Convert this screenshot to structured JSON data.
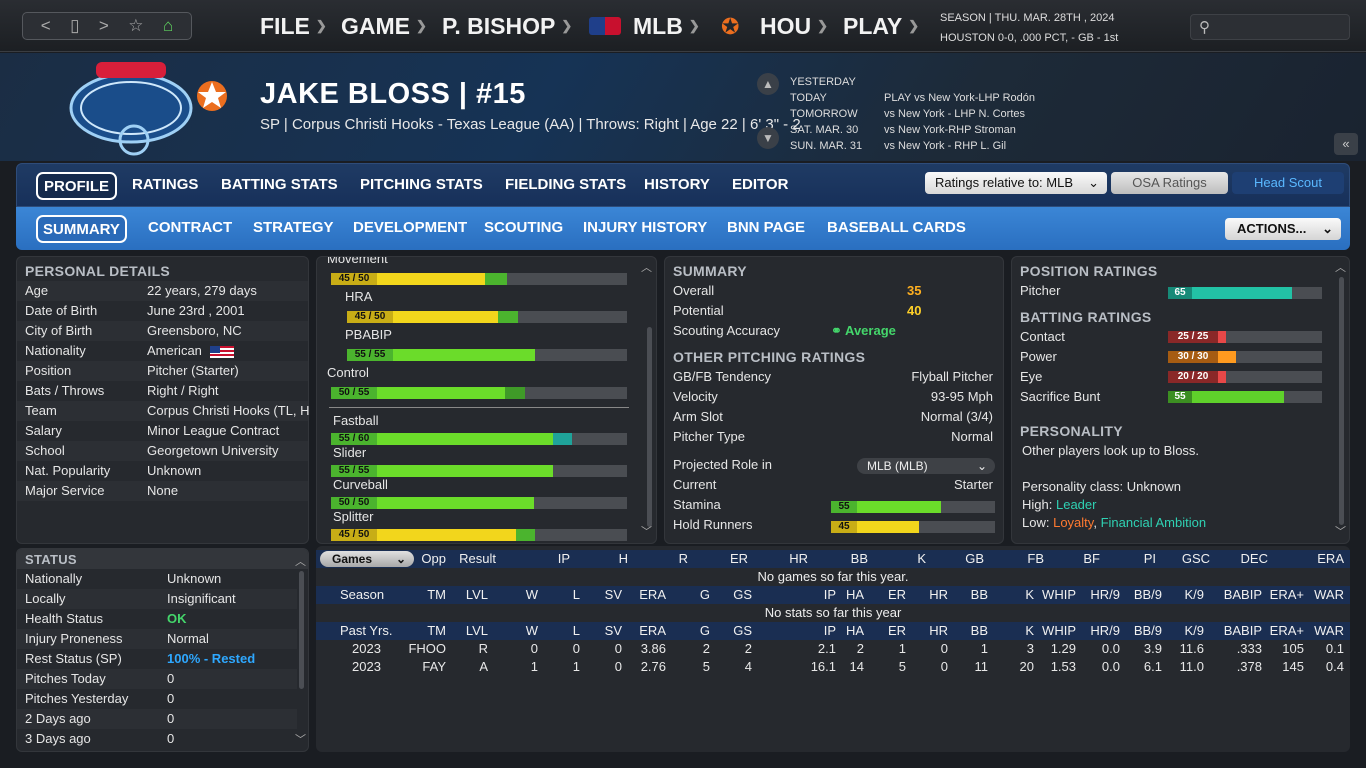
{
  "nav": {
    "back": "<",
    "forward": ">",
    "device": "▯",
    "star": "☆",
    "home": "⌂"
  },
  "menu": {
    "file": "FILE",
    "game": "GAME",
    "manager": "P. BISHOP",
    "league": "MLB",
    "team": "HOU",
    "play": "PLAY"
  },
  "season": {
    "line1": "SEASON  |  THU. MAR. 28TH , 2024",
    "line2": "HOUSTON   0-0, .000 PCT, - GB - 1st"
  },
  "player": {
    "name": "JAKE BLOSS  |  #15",
    "subtitle": "SP | Corpus Christi Hooks - Texas League (AA)  |  Throws: Right  |  Age 22  |  6' 3\" - 2"
  },
  "schedule": {
    "days": [
      "YESTERDAY",
      "TODAY",
      "TOMORROW",
      "SAT. MAR. 30",
      "SUN. MAR. 31"
    ],
    "games": [
      "PLAY vs New York-LHP Rodón",
      "vs New York - LHP N. Cortes",
      "vs New York-RHP Stroman",
      "vs New York - RHP L. Gil"
    ]
  },
  "tabs1": [
    "PROFILE",
    "RATINGS",
    "BATTING STATS",
    "PITCHING STATS",
    "FIELDING STATS",
    "HISTORY",
    "EDITOR"
  ],
  "ratings_select": "Ratings relative to: MLB",
  "osa_button": "OSA Ratings",
  "scout_button": "Head Scout",
  "tabs2": [
    "SUMMARY",
    "CONTRACT",
    "STRATEGY",
    "DEVELOPMENT",
    "SCOUTING",
    "INJURY HISTORY",
    "BNN PAGE",
    "BASEBALL CARDS"
  ],
  "actions": "ACTIONS...",
  "personal": {
    "title": "PERSONAL DETAILS",
    "rows": [
      [
        "Age",
        "22 years, 279 days"
      ],
      [
        "Date of Birth",
        "June 23rd , 2001"
      ],
      [
        "City of Birth",
        "Greensboro, NC"
      ],
      [
        "Nationality",
        "American"
      ],
      [
        "Position",
        "Pitcher (Starter)"
      ],
      [
        "Bats / Throws",
        "Right / Right"
      ],
      [
        "Team",
        "Corpus Christi Hooks (TL, H"
      ],
      [
        "Salary",
        "Minor League Contract"
      ],
      [
        "School",
        "Georgetown University"
      ],
      [
        "Nat. Popularity",
        "Unknown"
      ],
      [
        "Major Service",
        "None"
      ]
    ]
  },
  "pitching": {
    "movement": "Movement",
    "movement_val": "45 / 50",
    "hra": "HRA",
    "hra_val": "45 / 50",
    "pbabip": "PBABIP",
    "pbabip_val": "55 / 55",
    "control": "Control",
    "control_val": "50 / 55",
    "pitches": [
      {
        "name": "Fastball",
        "val": "55 / 60",
        "cur": 55,
        "pot": 60
      },
      {
        "name": "Slider",
        "val": "55 / 55",
        "cur": 55,
        "pot": 55
      },
      {
        "name": "Curveball",
        "val": "50 / 50",
        "cur": 50,
        "pot": 50
      },
      {
        "name": "Splitter",
        "val": "45 / 50",
        "cur": 45,
        "pot": 50
      }
    ]
  },
  "summary": {
    "title": "SUMMARY",
    "overall_label": "Overall",
    "overall": "35",
    "potential_label": "Potential",
    "potential": "40",
    "accuracy_label": "Scouting Accuracy",
    "accuracy": "Average",
    "other_title": "OTHER PITCHING RATINGS",
    "rows": [
      [
        "GB/FB Tendency",
        "Flyball Pitcher"
      ],
      [
        "Velocity",
        "93-95 Mph"
      ],
      [
        "Arm Slot",
        "Normal (3/4)"
      ],
      [
        "Pitcher Type",
        "Normal"
      ]
    ],
    "role_label": "Projected Role in",
    "role_select": "MLB (MLB)",
    "current_label": "Current",
    "current": "Starter",
    "stamina_label": "Stamina",
    "stamina": "55",
    "hold_label": "Hold Runners",
    "hold": "45"
  },
  "position": {
    "title": "POSITION RATINGS",
    "pitcher_label": "Pitcher",
    "pitcher": "65",
    "batting_title": "BATTING RATINGS",
    "batting": [
      {
        "label": "Contact",
        "val": "25 / 25",
        "cur": 25,
        "color": "#e74848"
      },
      {
        "label": "Power",
        "val": "30 / 30",
        "cur": 30,
        "color": "#ff9a1f"
      },
      {
        "label": "Eye",
        "val": "20 / 20",
        "cur": 20,
        "color": "#e74848"
      },
      {
        "label": "Sacrifice Bunt",
        "val": "55",
        "cur": 55,
        "color": "#5fd12b"
      }
    ],
    "personality_title": "PERSONALITY",
    "personality_text": "Other players look up to Bloss.",
    "class_text": "Personality class: Unknown",
    "high_label": "High:",
    "high": "Leader",
    "low_label": "Low:",
    "low1": "Loyalty",
    "low_sep": ",",
    "low2": "Financial Ambition"
  },
  "status": {
    "title": "STATUS",
    "rows": [
      [
        "Nationally",
        "Unknown"
      ],
      [
        "Locally",
        "Insignificant"
      ],
      [
        "Health Status",
        "OK"
      ],
      [
        "Injury Proneness",
        "Normal"
      ],
      [
        "Rest Status (SP)",
        "100% - Rested"
      ],
      [
        "Pitches Today",
        "0"
      ],
      [
        "Pitches Yesterday",
        "0"
      ],
      [
        "2 Days ago",
        "0"
      ],
      [
        "3 Days ago",
        "0"
      ]
    ]
  },
  "games": {
    "select": "Games",
    "header": [
      "Opp",
      "Result",
      "IP",
      "H",
      "R",
      "ER",
      "HR",
      "BB",
      "K",
      "GB",
      "FB",
      "BF",
      "PI",
      "GSC",
      "DEC",
      "ERA"
    ],
    "no_games": "No games so far this year.",
    "season_header": [
      "Season",
      "TM",
      "LVL",
      "W",
      "L",
      "SV",
      "ERA",
      "G",
      "GS",
      "IP",
      "HA",
      "ER",
      "HR",
      "BB",
      "K",
      "WHIP",
      "HR/9",
      "BB/9",
      "K/9",
      "BABIP",
      "ERA+",
      "WAR"
    ],
    "no_stats": "No stats so far this year",
    "past_header": [
      "Past Yrs.",
      "TM",
      "LVL",
      "W",
      "L",
      "SV",
      "ERA",
      "G",
      "GS",
      "IP",
      "HA",
      "ER",
      "HR",
      "BB",
      "K",
      "WHIP",
      "HR/9",
      "BB/9",
      "K/9",
      "BABIP",
      "ERA+",
      "WAR"
    ],
    "past": [
      [
        "2023",
        "FHOO",
        "R",
        "0",
        "0",
        "0",
        "3.86",
        "2",
        "2",
        "2.1",
        "2",
        "1",
        "0",
        "1",
        "3",
        "1.29",
        "0.0",
        "3.9",
        "11.6",
        ".333",
        "105",
        "0.1"
      ],
      [
        "2023",
        "FAY",
        "A",
        "1",
        "1",
        "0",
        "2.76",
        "5",
        "4",
        "16.1",
        "14",
        "5",
        "0",
        "11",
        "20",
        "1.53",
        "0.0",
        "6.1",
        "11.0",
        ".378",
        "145",
        "0.4"
      ]
    ]
  }
}
